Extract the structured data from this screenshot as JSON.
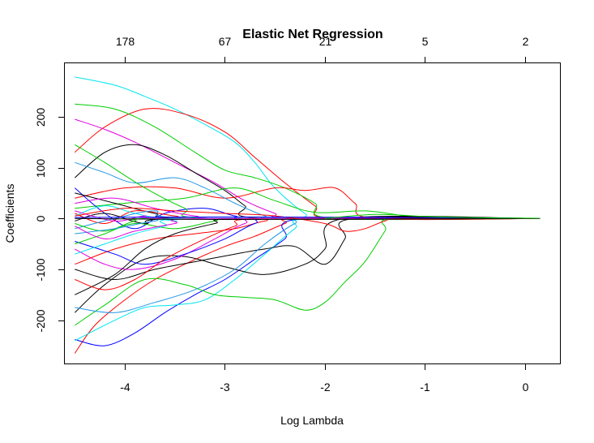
{
  "chart_data": {
    "type": "line",
    "title": "Elastic Net Regression",
    "xlabel": "Log Lambda",
    "ylabel": "Coefficients",
    "xlim": [
      -4.6,
      0.35
    ],
    "ylim": [
      -285,
      305
    ],
    "x_ticks": [
      -4,
      -3,
      -2,
      -1,
      0
    ],
    "x_tick_labels": [
      "-4",
      "-3",
      "-2",
      "-1",
      "0"
    ],
    "y_ticks": [
      -200,
      -100,
      0,
      100,
      200
    ],
    "y_tick_labels": [
      "-200",
      "-100",
      "0",
      "100",
      "200"
    ],
    "top_axis": {
      "positions": [
        -4,
        -3,
        -2,
        -1,
        0
      ],
      "labels": [
        "178",
        "67",
        "21",
        "5",
        "2"
      ]
    },
    "x_range": [
      -4.5,
      0.15
    ],
    "grid": false,
    "legend": "none",
    "palette": [
      "#000000",
      "#DF536B",
      "#00CD00",
      "#2297E6",
      "#00E5EE",
      "#E000E0",
      "#0000FF",
      "#FF0000"
    ],
    "series": [
      {
        "color": "#00E5EE",
        "points": [
          [
            -4.5,
            278
          ],
          [
            -4.1,
            262
          ],
          [
            -3.8,
            240
          ],
          [
            -3.5,
            215
          ],
          [
            -3.2,
            185
          ],
          [
            -2.9,
            150
          ],
          [
            -2.7,
            110
          ],
          [
            -2.5,
            60
          ],
          [
            -2.2,
            10
          ],
          [
            -2.0,
            0
          ]
        ]
      },
      {
        "color": "#FF0000",
        "points": [
          [
            -4.5,
            130
          ],
          [
            -4.2,
            180
          ],
          [
            -3.8,
            215
          ],
          [
            -3.4,
            205
          ],
          [
            -3.0,
            170
          ],
          [
            -2.7,
            120
          ],
          [
            -2.4,
            70
          ],
          [
            -2.1,
            25
          ],
          [
            -1.9,
            0
          ]
        ]
      },
      {
        "color": "#00CD00",
        "points": [
          [
            -4.5,
            225
          ],
          [
            -4.1,
            215
          ],
          [
            -3.7,
            180
          ],
          [
            -3.3,
            130
          ],
          [
            -3.0,
            95
          ],
          [
            -2.7,
            80
          ],
          [
            -2.4,
            60
          ],
          [
            -2.1,
            30
          ],
          [
            -1.9,
            0
          ]
        ]
      },
      {
        "color": "#E000E0",
        "points": [
          [
            -4.5,
            195
          ],
          [
            -4.2,
            175
          ],
          [
            -3.9,
            150
          ],
          [
            -3.5,
            110
          ],
          [
            -3.1,
            70
          ],
          [
            -2.8,
            35
          ],
          [
            -2.5,
            10
          ],
          [
            -2.3,
            0
          ]
        ]
      },
      {
        "color": "#000000",
        "points": [
          [
            -4.5,
            80
          ],
          [
            -4.2,
            130
          ],
          [
            -3.9,
            145
          ],
          [
            -3.6,
            125
          ],
          [
            -3.3,
            90
          ],
          [
            -3.0,
            55
          ],
          [
            -2.8,
            25
          ],
          [
            -2.6,
            0
          ]
        ]
      },
      {
        "color": "#FF0000",
        "points": [
          [
            -4.5,
            40
          ],
          [
            -4.0,
            60
          ],
          [
            -3.5,
            60
          ],
          [
            -3.0,
            40
          ],
          [
            -2.5,
            60
          ],
          [
            -2.2,
            55
          ],
          [
            -1.9,
            60
          ],
          [
            -1.7,
            30
          ],
          [
            -1.5,
            0
          ]
        ]
      },
      {
        "color": "#00CD00",
        "points": [
          [
            -4.5,
            20
          ],
          [
            -4.0,
            30
          ],
          [
            -3.4,
            40
          ],
          [
            -2.9,
            60
          ],
          [
            -2.5,
            35
          ],
          [
            -2.1,
            12
          ],
          [
            -1.6,
            15
          ],
          [
            -1.2,
            5
          ],
          [
            -0.9,
            0
          ]
        ]
      },
      {
        "color": "#2297E6",
        "points": [
          [
            -4.5,
            110
          ],
          [
            -4.2,
            90
          ],
          [
            -3.9,
            70
          ],
          [
            -3.5,
            80
          ],
          [
            -3.2,
            60
          ],
          [
            -2.9,
            30
          ],
          [
            -2.6,
            5
          ],
          [
            -2.4,
            0
          ]
        ]
      },
      {
        "color": "#0000FF",
        "points": [
          [
            -4.5,
            60
          ],
          [
            -4.2,
            10
          ],
          [
            -3.9,
            -20
          ],
          [
            -3.6,
            10
          ],
          [
            -3.2,
            20
          ],
          [
            -2.9,
            5
          ],
          [
            -2.6,
            0
          ]
        ]
      },
      {
        "color": "#00CD00",
        "points": [
          [
            -4.5,
            145
          ],
          [
            -4.2,
            110
          ],
          [
            -3.8,
            60
          ],
          [
            -3.4,
            20
          ],
          [
            -3.1,
            0
          ]
        ]
      },
      {
        "color": "#000000",
        "points": [
          [
            -4.5,
            50
          ],
          [
            -4.1,
            30
          ],
          [
            -3.7,
            10
          ],
          [
            -3.3,
            0
          ]
        ]
      },
      {
        "color": "#E000E0",
        "points": [
          [
            -4.5,
            30
          ],
          [
            -4.1,
            40
          ],
          [
            -3.7,
            20
          ],
          [
            -3.3,
            5
          ],
          [
            -2.9,
            0
          ]
        ]
      },
      {
        "color": "#FF0000",
        "points": [
          [
            -4.5,
            10
          ],
          [
            -4.2,
            -10
          ],
          [
            -3.9,
            15
          ],
          [
            -3.5,
            5
          ],
          [
            -3.1,
            0
          ]
        ]
      },
      {
        "color": "#00E5EE",
        "points": [
          [
            -4.5,
            5
          ],
          [
            -4.2,
            25
          ],
          [
            -3.9,
            10
          ],
          [
            -3.5,
            -5
          ],
          [
            -3.2,
            0
          ]
        ]
      },
      {
        "color": "#2297E6",
        "points": [
          [
            -4.5,
            -20
          ],
          [
            -4.1,
            0
          ],
          [
            -3.7,
            15
          ],
          [
            -3.3,
            0
          ]
        ]
      },
      {
        "color": "#000000",
        "points": [
          [
            -4.5,
            -5
          ],
          [
            -4.2,
            10
          ],
          [
            -3.8,
            -10
          ],
          [
            -3.4,
            0
          ]
        ]
      },
      {
        "color": "#00CD00",
        "points": [
          [
            -4.5,
            -10
          ],
          [
            -4.2,
            -25
          ],
          [
            -3.9,
            -5
          ],
          [
            -3.6,
            0
          ]
        ]
      },
      {
        "color": "#E000E0",
        "points": [
          [
            -4.5,
            15
          ],
          [
            -4.1,
            -5
          ],
          [
            -3.8,
            5
          ],
          [
            -3.5,
            0
          ]
        ]
      },
      {
        "color": "#FF0000",
        "points": [
          [
            -4.5,
            -265
          ],
          [
            -4.3,
            -210
          ],
          [
            -4.0,
            -160
          ],
          [
            -3.7,
            -120
          ],
          [
            -3.4,
            -90
          ],
          [
            -3.0,
            -55
          ],
          [
            -2.7,
            -35
          ],
          [
            -2.4,
            -10
          ],
          [
            -2.2,
            0
          ]
        ]
      },
      {
        "color": "#0000FF",
        "points": [
          [
            -4.5,
            -238
          ],
          [
            -4.2,
            -250
          ],
          [
            -3.9,
            -225
          ],
          [
            -3.6,
            -185
          ],
          [
            -3.3,
            -150
          ],
          [
            -3.0,
            -120
          ],
          [
            -2.7,
            -80
          ],
          [
            -2.4,
            -40
          ],
          [
            -2.2,
            0
          ]
        ]
      },
      {
        "color": "#00E5EE",
        "points": [
          [
            -4.5,
            -240
          ],
          [
            -4.1,
            -200
          ],
          [
            -3.8,
            -175
          ],
          [
            -3.5,
            -170
          ],
          [
            -3.2,
            -160
          ],
          [
            -2.9,
            -120
          ],
          [
            -2.6,
            -70
          ],
          [
            -2.3,
            -20
          ],
          [
            -2.1,
            0
          ]
        ]
      },
      {
        "color": "#00CD00",
        "points": [
          [
            -4.5,
            -210
          ],
          [
            -4.2,
            -170
          ],
          [
            -3.8,
            -120
          ],
          [
            -3.4,
            -130
          ],
          [
            -3.1,
            -150
          ],
          [
            -2.8,
            -155
          ],
          [
            -2.5,
            -160
          ],
          [
            -2.2,
            -180
          ],
          [
            -2.0,
            -165
          ],
          [
            -1.8,
            -125
          ],
          [
            -1.6,
            -85
          ],
          [
            -1.4,
            -25
          ],
          [
            -1.3,
            0
          ]
        ]
      },
      {
        "color": "#000000",
        "points": [
          [
            -4.5,
            -100
          ],
          [
            -4.1,
            -120
          ],
          [
            -3.7,
            -100
          ],
          [
            -3.3,
            -85
          ],
          [
            -2.9,
            -70
          ],
          [
            -2.6,
            -60
          ],
          [
            -2.3,
            -55
          ],
          [
            -2.0,
            -90
          ],
          [
            -1.8,
            -40
          ],
          [
            -1.7,
            0
          ]
        ]
      },
      {
        "color": "#000000",
        "points": [
          [
            -4.5,
            -185
          ],
          [
            -4.2,
            -130
          ],
          [
            -3.8,
            -80
          ],
          [
            -3.4,
            -75
          ],
          [
            -3.0,
            -95
          ],
          [
            -2.6,
            -110
          ],
          [
            -2.2,
            -90
          ],
          [
            -2.0,
            -60
          ],
          [
            -1.8,
            0
          ]
        ]
      },
      {
        "color": "#2297E6",
        "points": [
          [
            -4.5,
            -175
          ],
          [
            -4.1,
            -185
          ],
          [
            -3.7,
            -165
          ],
          [
            -3.3,
            -140
          ],
          [
            -2.9,
            -100
          ],
          [
            -2.6,
            -50
          ],
          [
            -2.3,
            -10
          ],
          [
            -2.1,
            0
          ]
        ]
      },
      {
        "color": "#E000E0",
        "points": [
          [
            -4.5,
            -60
          ],
          [
            -4.2,
            -90
          ],
          [
            -3.9,
            -100
          ],
          [
            -3.5,
            -80
          ],
          [
            -3.1,
            -40
          ],
          [
            -2.8,
            -10
          ],
          [
            -2.5,
            0
          ]
        ]
      },
      {
        "color": "#FF0000",
        "points": [
          [
            -4.5,
            -90
          ],
          [
            -4.1,
            -60
          ],
          [
            -3.7,
            -40
          ],
          [
            -3.3,
            -30
          ],
          [
            -2.9,
            -20
          ],
          [
            -2.6,
            -5
          ],
          [
            -2.3,
            0
          ]
        ]
      },
      {
        "color": "#0000FF",
        "points": [
          [
            -4.5,
            -45
          ],
          [
            -4.1,
            -70
          ],
          [
            -3.8,
            -90
          ],
          [
            -3.4,
            -70
          ],
          [
            -3.0,
            -40
          ],
          [
            -2.7,
            -10
          ],
          [
            -2.4,
            0
          ]
        ]
      },
      {
        "color": "#00CD00",
        "points": [
          [
            -4.5,
            -50
          ],
          [
            -4.2,
            -30
          ],
          [
            -3.9,
            -10
          ],
          [
            -3.5,
            -20
          ],
          [
            -3.1,
            -5
          ],
          [
            -2.8,
            0
          ]
        ]
      },
      {
        "color": "#2297E6",
        "points": [
          [
            -4.5,
            -30
          ],
          [
            -4.1,
            -20
          ],
          [
            -3.7,
            -5
          ],
          [
            -3.3,
            0
          ]
        ]
      },
      {
        "color": "#00E5EE",
        "points": [
          [
            -4.5,
            -70
          ],
          [
            -4.2,
            -50
          ],
          [
            -3.9,
            -30
          ],
          [
            -3.6,
            -15
          ],
          [
            -3.3,
            0
          ]
        ]
      },
      {
        "color": "#000000",
        "points": [
          [
            -4.5,
            -150
          ],
          [
            -4.1,
            -110
          ],
          [
            -3.8,
            -60
          ],
          [
            -3.5,
            -30
          ],
          [
            -3.1,
            -10
          ],
          [
            -2.8,
            0
          ]
        ]
      },
      {
        "color": "#FF0000",
        "points": [
          [
            -4.5,
            -120
          ],
          [
            -4.2,
            -140
          ],
          [
            -3.9,
            -120
          ],
          [
            -3.6,
            -80
          ],
          [
            -3.2,
            -40
          ],
          [
            -2.9,
            -15
          ],
          [
            -2.6,
            0
          ]
        ]
      },
      {
        "color": "#E000E0",
        "points": [
          [
            -4.5,
            -15
          ],
          [
            -4.2,
            -40
          ],
          [
            -3.9,
            -25
          ],
          [
            -3.5,
            -10
          ],
          [
            -3.2,
            0
          ]
        ]
      },
      {
        "color": "#FF0000",
        "points": [
          [
            -4.5,
            5
          ],
          [
            -4.0,
            20
          ],
          [
            -3.5,
            15
          ],
          [
            -3.0,
            10
          ],
          [
            -2.5,
            5
          ],
          [
            -2.0,
            -10
          ],
          [
            -1.8,
            -25
          ],
          [
            -1.6,
            -20
          ],
          [
            -1.4,
            -5
          ],
          [
            -1.2,
            0
          ]
        ]
      },
      {
        "color": "#0000FF",
        "points": [
          [
            -4.5,
            2
          ],
          [
            -3.0,
            3
          ],
          [
            -1.5,
            2
          ],
          [
            -0.5,
            1
          ],
          [
            0.0,
            0.5
          ],
          [
            0.15,
            0.3
          ]
        ]
      },
      {
        "color": "#000000",
        "points": [
          [
            -4.5,
            0
          ],
          [
            -3.0,
            -2
          ],
          [
            -1.5,
            -1
          ],
          [
            -0.5,
            -0.5
          ],
          [
            0.15,
            0
          ]
        ]
      },
      {
        "color": "#00CD00",
        "points": [
          [
            -2.0,
            0
          ],
          [
            -1.5,
            8
          ],
          [
            -1.0,
            4
          ],
          [
            -0.5,
            1.5
          ],
          [
            0.15,
            0.5
          ]
        ]
      }
    ]
  }
}
